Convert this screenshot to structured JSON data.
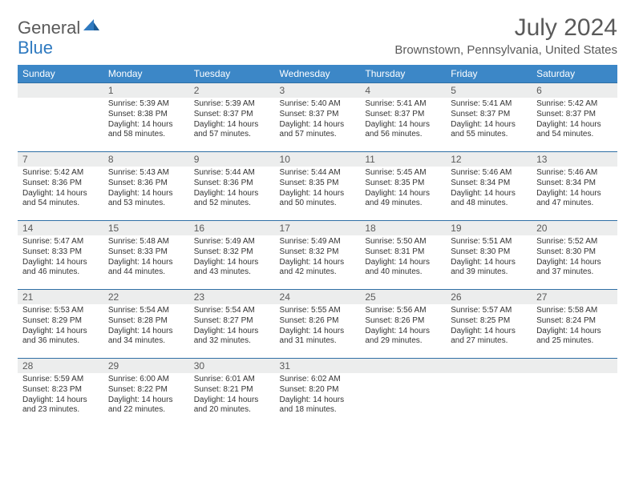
{
  "logo": {
    "text1": "General",
    "text2": "Blue"
  },
  "title": "July 2024",
  "location": "Brownstown, Pennsylvania, United States",
  "colors": {
    "header_bg": "#3c87c7",
    "header_text": "#ffffff",
    "daynum_bg": "#eceded",
    "border": "#2f6fa5",
    "text": "#333333",
    "muted": "#5a5a5a",
    "accent": "#2f7ac0"
  },
  "day_names": [
    "Sunday",
    "Monday",
    "Tuesday",
    "Wednesday",
    "Thursday",
    "Friday",
    "Saturday"
  ],
  "weeks": [
    [
      {
        "num": "",
        "sunrise": "",
        "sunset": "",
        "daylight": ""
      },
      {
        "num": "1",
        "sunrise": "Sunrise: 5:39 AM",
        "sunset": "Sunset: 8:38 PM",
        "daylight": "Daylight: 14 hours and 58 minutes."
      },
      {
        "num": "2",
        "sunrise": "Sunrise: 5:39 AM",
        "sunset": "Sunset: 8:37 PM",
        "daylight": "Daylight: 14 hours and 57 minutes."
      },
      {
        "num": "3",
        "sunrise": "Sunrise: 5:40 AM",
        "sunset": "Sunset: 8:37 PM",
        "daylight": "Daylight: 14 hours and 57 minutes."
      },
      {
        "num": "4",
        "sunrise": "Sunrise: 5:41 AM",
        "sunset": "Sunset: 8:37 PM",
        "daylight": "Daylight: 14 hours and 56 minutes."
      },
      {
        "num": "5",
        "sunrise": "Sunrise: 5:41 AM",
        "sunset": "Sunset: 8:37 PM",
        "daylight": "Daylight: 14 hours and 55 minutes."
      },
      {
        "num": "6",
        "sunrise": "Sunrise: 5:42 AM",
        "sunset": "Sunset: 8:37 PM",
        "daylight": "Daylight: 14 hours and 54 minutes."
      }
    ],
    [
      {
        "num": "7",
        "sunrise": "Sunrise: 5:42 AM",
        "sunset": "Sunset: 8:36 PM",
        "daylight": "Daylight: 14 hours and 54 minutes."
      },
      {
        "num": "8",
        "sunrise": "Sunrise: 5:43 AM",
        "sunset": "Sunset: 8:36 PM",
        "daylight": "Daylight: 14 hours and 53 minutes."
      },
      {
        "num": "9",
        "sunrise": "Sunrise: 5:44 AM",
        "sunset": "Sunset: 8:36 PM",
        "daylight": "Daylight: 14 hours and 52 minutes."
      },
      {
        "num": "10",
        "sunrise": "Sunrise: 5:44 AM",
        "sunset": "Sunset: 8:35 PM",
        "daylight": "Daylight: 14 hours and 50 minutes."
      },
      {
        "num": "11",
        "sunrise": "Sunrise: 5:45 AM",
        "sunset": "Sunset: 8:35 PM",
        "daylight": "Daylight: 14 hours and 49 minutes."
      },
      {
        "num": "12",
        "sunrise": "Sunrise: 5:46 AM",
        "sunset": "Sunset: 8:34 PM",
        "daylight": "Daylight: 14 hours and 48 minutes."
      },
      {
        "num": "13",
        "sunrise": "Sunrise: 5:46 AM",
        "sunset": "Sunset: 8:34 PM",
        "daylight": "Daylight: 14 hours and 47 minutes."
      }
    ],
    [
      {
        "num": "14",
        "sunrise": "Sunrise: 5:47 AM",
        "sunset": "Sunset: 8:33 PM",
        "daylight": "Daylight: 14 hours and 46 minutes."
      },
      {
        "num": "15",
        "sunrise": "Sunrise: 5:48 AM",
        "sunset": "Sunset: 8:33 PM",
        "daylight": "Daylight: 14 hours and 44 minutes."
      },
      {
        "num": "16",
        "sunrise": "Sunrise: 5:49 AM",
        "sunset": "Sunset: 8:32 PM",
        "daylight": "Daylight: 14 hours and 43 minutes."
      },
      {
        "num": "17",
        "sunrise": "Sunrise: 5:49 AM",
        "sunset": "Sunset: 8:32 PM",
        "daylight": "Daylight: 14 hours and 42 minutes."
      },
      {
        "num": "18",
        "sunrise": "Sunrise: 5:50 AM",
        "sunset": "Sunset: 8:31 PM",
        "daylight": "Daylight: 14 hours and 40 minutes."
      },
      {
        "num": "19",
        "sunrise": "Sunrise: 5:51 AM",
        "sunset": "Sunset: 8:30 PM",
        "daylight": "Daylight: 14 hours and 39 minutes."
      },
      {
        "num": "20",
        "sunrise": "Sunrise: 5:52 AM",
        "sunset": "Sunset: 8:30 PM",
        "daylight": "Daylight: 14 hours and 37 minutes."
      }
    ],
    [
      {
        "num": "21",
        "sunrise": "Sunrise: 5:53 AM",
        "sunset": "Sunset: 8:29 PM",
        "daylight": "Daylight: 14 hours and 36 minutes."
      },
      {
        "num": "22",
        "sunrise": "Sunrise: 5:54 AM",
        "sunset": "Sunset: 8:28 PM",
        "daylight": "Daylight: 14 hours and 34 minutes."
      },
      {
        "num": "23",
        "sunrise": "Sunrise: 5:54 AM",
        "sunset": "Sunset: 8:27 PM",
        "daylight": "Daylight: 14 hours and 32 minutes."
      },
      {
        "num": "24",
        "sunrise": "Sunrise: 5:55 AM",
        "sunset": "Sunset: 8:26 PM",
        "daylight": "Daylight: 14 hours and 31 minutes."
      },
      {
        "num": "25",
        "sunrise": "Sunrise: 5:56 AM",
        "sunset": "Sunset: 8:26 PM",
        "daylight": "Daylight: 14 hours and 29 minutes."
      },
      {
        "num": "26",
        "sunrise": "Sunrise: 5:57 AM",
        "sunset": "Sunset: 8:25 PM",
        "daylight": "Daylight: 14 hours and 27 minutes."
      },
      {
        "num": "27",
        "sunrise": "Sunrise: 5:58 AM",
        "sunset": "Sunset: 8:24 PM",
        "daylight": "Daylight: 14 hours and 25 minutes."
      }
    ],
    [
      {
        "num": "28",
        "sunrise": "Sunrise: 5:59 AM",
        "sunset": "Sunset: 8:23 PM",
        "daylight": "Daylight: 14 hours and 23 minutes."
      },
      {
        "num": "29",
        "sunrise": "Sunrise: 6:00 AM",
        "sunset": "Sunset: 8:22 PM",
        "daylight": "Daylight: 14 hours and 22 minutes."
      },
      {
        "num": "30",
        "sunrise": "Sunrise: 6:01 AM",
        "sunset": "Sunset: 8:21 PM",
        "daylight": "Daylight: 14 hours and 20 minutes."
      },
      {
        "num": "31",
        "sunrise": "Sunrise: 6:02 AM",
        "sunset": "Sunset: 8:20 PM",
        "daylight": "Daylight: 14 hours and 18 minutes."
      },
      {
        "num": "",
        "sunrise": "",
        "sunset": "",
        "daylight": ""
      },
      {
        "num": "",
        "sunrise": "",
        "sunset": "",
        "daylight": ""
      },
      {
        "num": "",
        "sunrise": "",
        "sunset": "",
        "daylight": ""
      }
    ]
  ]
}
